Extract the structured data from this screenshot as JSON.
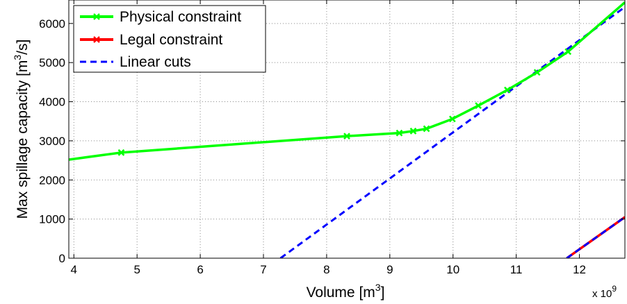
{
  "chart_data": {
    "type": "line",
    "xlabel": "Volume [m",
    "xlabel_sup": "3",
    "xlabel_tail": "]",
    "ylabel": "Max spillage capacity [m",
    "ylabel_sup": "3",
    "ylabel_tail": "/s]",
    "x_exponent_prefix": "x 10",
    "x_exponent_power": "9",
    "xlim": [
      3.92,
      12.72
    ],
    "ylim": [
      0,
      6600
    ],
    "xticks": [
      4,
      5,
      6,
      7,
      8,
      9,
      10,
      11,
      12
    ],
    "yticks": [
      0,
      1000,
      2000,
      3000,
      4000,
      5000,
      6000
    ],
    "grid": true,
    "legend_position": "top-left",
    "series": [
      {
        "name": "Physical constraint",
        "color": "#00ff00",
        "style": "solid",
        "marker": "x",
        "x": [
          3.92,
          4.75,
          8.32,
          9.15,
          9.37,
          9.58,
          9.99,
          10.4,
          10.86,
          11.33,
          11.82,
          12.72
        ],
        "y": [
          2520,
          2700,
          3120,
          3200,
          3250,
          3310,
          3560,
          3900,
          4300,
          4750,
          5280,
          6540
        ],
        "marker_x": [
          4.75,
          8.32,
          9.15,
          9.37,
          9.58,
          9.99,
          10.4,
          10.86,
          11.33,
          11.82
        ]
      },
      {
        "name": "Legal constraint",
        "color": "#ff0000",
        "style": "solid",
        "marker": "x",
        "x": [
          11.8,
          12.72
        ],
        "y": [
          0,
          1050
        ],
        "marker_x": []
      },
      {
        "name": "Linear cuts",
        "color": "#0000ff",
        "style": "dashed",
        "marker": "",
        "segments": [
          {
            "x": [
              7.27,
              12.72
            ],
            "y": [
              0,
              6420
            ]
          },
          {
            "x": [
              11.8,
              12.72
            ],
            "y": [
              0,
              1050
            ]
          }
        ]
      }
    ]
  }
}
